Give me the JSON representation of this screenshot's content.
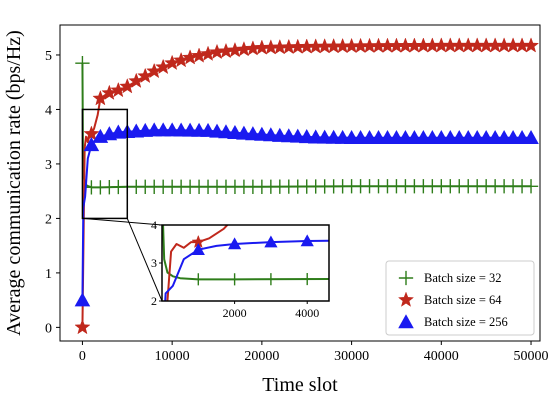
{
  "chart_data": {
    "type": "line",
    "xlabel": "Time slot",
    "ylabel": "Average communication rate (bps/Hz)",
    "xlim": [
      -2500,
      51000
    ],
    "ylim": [
      -0.25,
      5.55
    ],
    "x_ticks": [
      "0",
      "10000",
      "20000",
      "30000",
      "40000",
      "50000"
    ],
    "y_ticks": [
      "0",
      "1",
      "2",
      "3",
      "4",
      "5"
    ],
    "legend_position": "lower-right",
    "series": [
      {
        "name": "Batch size = 32",
        "color": "#2e7d1a",
        "marker": "plus",
        "points": [
          [
            0,
            4.85
          ],
          [
            60,
            3.1
          ],
          [
            150,
            2.75
          ],
          [
            300,
            2.65
          ],
          [
            500,
            2.6
          ],
          [
            1000,
            2.57
          ],
          [
            2000,
            2.57
          ],
          [
            5000,
            2.58
          ],
          [
            10000,
            2.58
          ],
          [
            20000,
            2.58
          ],
          [
            30000,
            2.59
          ],
          [
            40000,
            2.59
          ],
          [
            50000,
            2.59
          ]
        ]
      },
      {
        "name": "Batch size = 64",
        "color": "#c0281c",
        "marker": "star",
        "points": [
          [
            0,
            0.0
          ],
          [
            150,
            2.0
          ],
          [
            250,
            3.3
          ],
          [
            400,
            3.5
          ],
          [
            600,
            3.4
          ],
          [
            800,
            3.55
          ],
          [
            1000,
            3.55
          ],
          [
            1300,
            3.65
          ],
          [
            1700,
            3.9
          ],
          [
            2000,
            4.2
          ],
          [
            2500,
            4.26
          ],
          [
            3000,
            4.3
          ],
          [
            4000,
            4.35
          ],
          [
            5000,
            4.42
          ],
          [
            6000,
            4.52
          ],
          [
            8000,
            4.7
          ],
          [
            10000,
            4.85
          ],
          [
            12000,
            4.95
          ],
          [
            15000,
            5.05
          ],
          [
            18000,
            5.1
          ],
          [
            20000,
            5.13
          ],
          [
            25000,
            5.15
          ],
          [
            30000,
            5.16
          ],
          [
            40000,
            5.17
          ],
          [
            50000,
            5.17
          ]
        ]
      },
      {
        "name": "Batch size = 256",
        "color": "#1a1af0",
        "marker": "triangle",
        "points": [
          [
            0,
            0.5
          ],
          [
            100,
            2.2
          ],
          [
            300,
            2.4
          ],
          [
            600,
            3.1
          ],
          [
            1000,
            3.35
          ],
          [
            1500,
            3.45
          ],
          [
            2000,
            3.5
          ],
          [
            3000,
            3.55
          ],
          [
            4000,
            3.58
          ],
          [
            6000,
            3.6
          ],
          [
            8000,
            3.62
          ],
          [
            10000,
            3.62
          ],
          [
            14000,
            3.61
          ],
          [
            18000,
            3.56
          ],
          [
            22000,
            3.52
          ],
          [
            26000,
            3.49
          ],
          [
            30000,
            3.48
          ],
          [
            40000,
            3.48
          ],
          [
            50000,
            3.48
          ]
        ]
      }
    ],
    "inset": {
      "xlim": [
        0,
        4600
      ],
      "ylim": [
        2,
        4
      ],
      "x_ticks": [
        "2000",
        "4000"
      ],
      "y_ticks": [
        "2",
        "3",
        "4"
      ],
      "source_box": {
        "x": [
          0,
          5000
        ],
        "y": [
          2,
          4
        ]
      }
    }
  }
}
